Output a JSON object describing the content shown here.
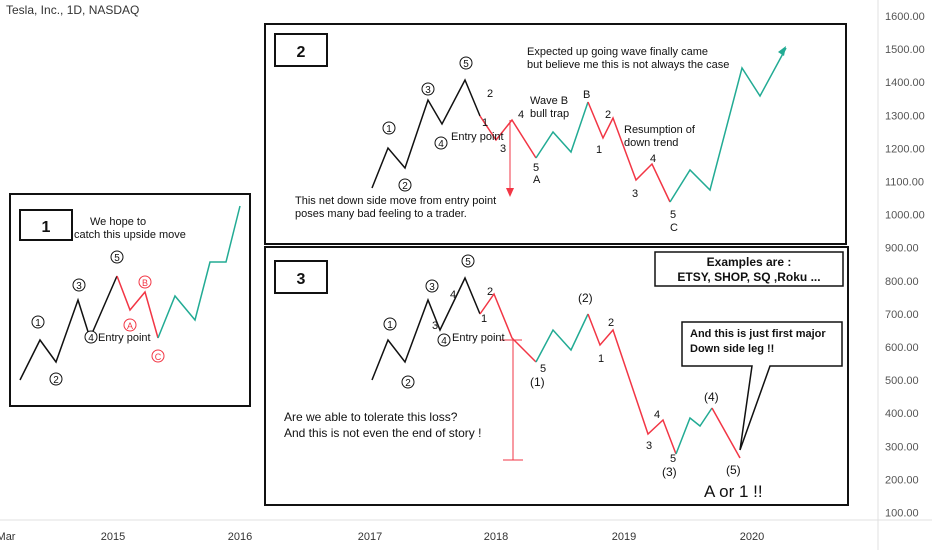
{
  "header": {
    "title": "Tesla, Inc., 1D, NASDAQ"
  },
  "colors": {
    "black": "#111111",
    "red": "#f23645",
    "green": "#22ab94",
    "axis": "#555555",
    "border": "#111111"
  },
  "chart_data": {
    "type": "line",
    "yaxis": {
      "ticks": [
        "1600.00",
        "1500.00",
        "1400.00",
        "1300.00",
        "1200.00",
        "1100.00",
        "1000.00",
        "900.00",
        "800.00",
        "700.00",
        "600.00",
        "500.00",
        "400.00",
        "300.00",
        "200.00",
        "100.00"
      ]
    },
    "xaxis": {
      "ticks": [
        "Mar",
        "2015",
        "2016",
        "2017",
        "2018",
        "2019",
        "2020"
      ]
    },
    "panels": [
      {
        "id": "1",
        "labels": {
          "number": "1",
          "text1": "We hope to",
          "text2": "catch this upside move",
          "entry": "Entry point"
        },
        "wave_marks": [
          "1",
          "2",
          "3",
          "4",
          "5",
          "A",
          "B",
          "C"
        ],
        "black_path": [
          [
            20,
            380
          ],
          [
            40,
            340
          ],
          [
            56,
            362
          ],
          [
            78,
            300
          ],
          [
            90,
            338
          ],
          [
            117,
            276
          ]
        ],
        "red_path": [
          [
            117,
            276
          ],
          [
            130,
            310
          ],
          [
            145,
            292
          ],
          [
            158,
            338
          ]
        ],
        "green_path": [
          [
            158,
            338
          ],
          [
            175,
            296
          ],
          [
            195,
            320
          ],
          [
            210,
            262
          ],
          [
            226,
            262
          ],
          [
            240,
            206
          ]
        ]
      },
      {
        "id": "2",
        "labels": {
          "number": "2",
          "note1": "Expected up going wave finally came",
          "note2": "but believe me this is not always the case",
          "waveB1": "Wave B",
          "waveB2": "bull trap",
          "resume1": "Resumption of",
          "resume2": "down trend",
          "entry": "Entry point",
          "bottom1": "This net down side move from entry point",
          "bottom2": "poses many bad feeling to a trader."
        },
        "sub_labels": [
          "1",
          "3",
          "4",
          "1",
          "2",
          "4",
          "5",
          "A",
          "B",
          "2",
          "1",
          "4",
          "3",
          "5",
          "C"
        ],
        "circled": [
          "1",
          "2",
          "3",
          "4",
          "5"
        ],
        "black_path": [
          [
            372,
            188
          ],
          [
            388,
            148
          ],
          [
            405,
            168
          ],
          [
            428,
            100
          ],
          [
            442,
            124
          ],
          [
            465,
            80
          ],
          [
            480,
            116
          ]
        ],
        "red_path": [
          [
            480,
            116
          ],
          [
            496,
            140
          ],
          [
            512,
            120
          ],
          [
            536,
            158
          ]
        ],
        "green_path": [
          [
            536,
            158
          ],
          [
            553,
            132
          ],
          [
            571,
            152
          ],
          [
            588,
            102
          ]
        ],
        "red_path2": [
          [
            588,
            102
          ],
          [
            603,
            138
          ],
          [
            613,
            118
          ],
          [
            636,
            180
          ],
          [
            652,
            164
          ],
          [
            670,
            202
          ]
        ],
        "green_path2": [
          [
            670,
            202
          ],
          [
            690,
            170
          ],
          [
            710,
            190
          ],
          [
            742,
            68
          ],
          [
            760,
            96
          ],
          [
            786,
            48
          ]
        ]
      },
      {
        "id": "3",
        "labels": {
          "number": "3",
          "examples1": "Examples are :",
          "examples2": "ETSY, SHOP, SQ ,Roku ...",
          "callout1": "And this is just first major",
          "callout2": "Down side leg !!",
          "q1": "Are we able to tolerate this loss?",
          "q2": "And this is not even the end of story !",
          "entry": "Entry point",
          "final": "A or 1 !!"
        },
        "wave_marks": [
          "1",
          "2",
          "3",
          "4",
          "5",
          "(1)",
          "(2)",
          "(3)",
          "(4)",
          "(5)"
        ],
        "black_path": [
          [
            372,
            380
          ],
          [
            388,
            340
          ],
          [
            405,
            362
          ],
          [
            428,
            300
          ],
          [
            440,
            330
          ],
          [
            465,
            278
          ],
          [
            480,
            314
          ]
        ],
        "red_path": [
          [
            480,
            314
          ],
          [
            494,
            294
          ],
          [
            512,
            338
          ],
          [
            536,
            362
          ]
        ],
        "green_path": [
          [
            536,
            362
          ],
          [
            553,
            330
          ],
          [
            571,
            350
          ],
          [
            588,
            314
          ]
        ],
        "red_path2": [
          [
            588,
            314
          ],
          [
            600,
            345
          ],
          [
            613,
            330
          ],
          [
            648,
            434
          ],
          [
            663,
            420
          ],
          [
            676,
            454
          ]
        ],
        "green_path2": [
          [
            676,
            454
          ],
          [
            690,
            418
          ],
          [
            700,
            426
          ],
          [
            712,
            408
          ]
        ],
        "red_path3": [
          [
            712,
            408
          ],
          [
            740,
            458
          ]
        ]
      }
    ]
  }
}
